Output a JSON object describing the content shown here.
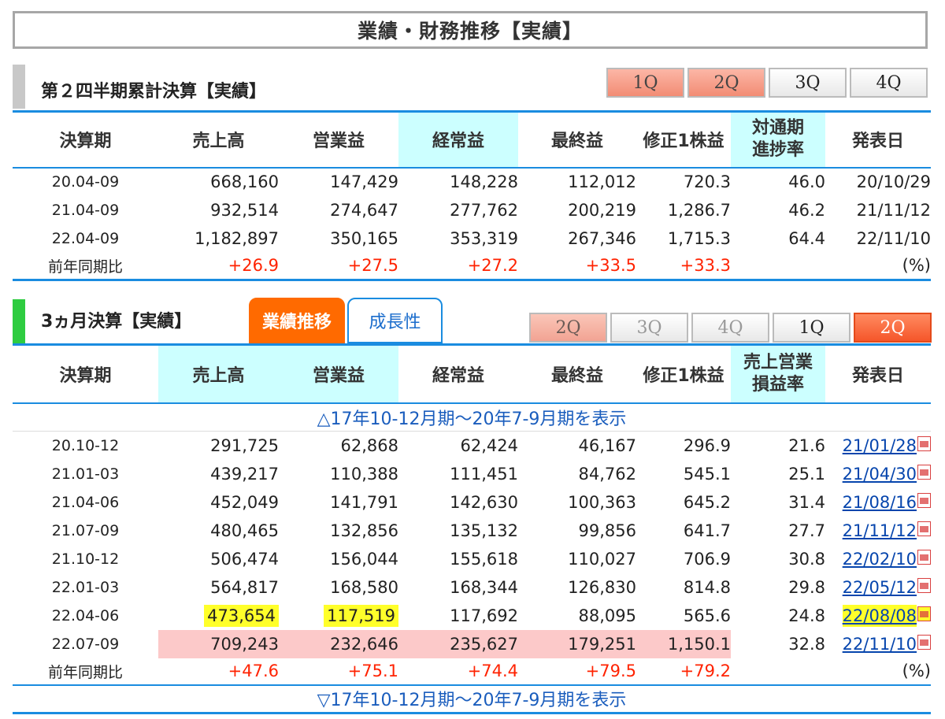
{
  "page_title": "業績・財務推移【実績】",
  "cumulative": {
    "title": "第２四半期累計決算【実績】",
    "qtabs": [
      "1Q",
      "2Q",
      "3Q",
      "4Q"
    ],
    "headers": [
      "決算期",
      "売上高",
      "営業益",
      "経常益",
      "最終益",
      "修正1株益",
      "対通期\n進捗率",
      "発表日"
    ],
    "rows": [
      {
        "period": "20.04-09",
        "sales": "668,160",
        "op": "147,429",
        "ord": "148,228",
        "net": "112,012",
        "eps": "720.3",
        "progress": "46.0",
        "date": "20/10/29"
      },
      {
        "period": "21.04-09",
        "sales": "932,514",
        "op": "274,647",
        "ord": "277,762",
        "net": "200,219",
        "eps": "1,286.7",
        "progress": "46.2",
        "date": "21/11/12"
      },
      {
        "period": "22.04-09",
        "sales": "1,182,897",
        "op": "350,165",
        "ord": "353,319",
        "net": "267,346",
        "eps": "1,715.3",
        "progress": "64.4",
        "date": "22/11/10"
      }
    ],
    "yoy": {
      "label": "前年同期比",
      "sales": "+26.9",
      "op": "+27.5",
      "ord": "+27.2",
      "net": "+33.5",
      "eps": "+33.3",
      "unit": "(%)"
    }
  },
  "quarterly": {
    "title": "3ヵ月決算【実績】",
    "tab_perf": "業績推移",
    "tab_growth": "成長性",
    "qtabs": [
      "2Q",
      "3Q",
      "4Q",
      "1Q",
      "2Q"
    ],
    "headers": [
      "決算期",
      "売上高",
      "営業益",
      "経常益",
      "最終益",
      "修正1株益",
      "売上営業\n損益率",
      "発表日"
    ],
    "toggle_top": "△17年10-12月期～20年7-9月期を表示",
    "toggle_bottom": "▽17年10-12月期～20年7-9月期を表示",
    "rows": [
      {
        "period": "20.10-12",
        "sales": "291,725",
        "op": "62,868",
        "ord": "62,424",
        "net": "46,167",
        "eps": "296.9",
        "margin": "21.6",
        "date": "21/01/28"
      },
      {
        "period": "21.01-03",
        "sales": "439,217",
        "op": "110,388",
        "ord": "111,451",
        "net": "84,762",
        "eps": "545.1",
        "margin": "25.1",
        "date": "21/04/30"
      },
      {
        "period": "21.04-06",
        "sales": "452,049",
        "op": "141,791",
        "ord": "142,630",
        "net": "100,363",
        "eps": "645.2",
        "margin": "31.4",
        "date": "21/08/16"
      },
      {
        "period": "21.07-09",
        "sales": "480,465",
        "op": "132,856",
        "ord": "135,132",
        "net": "99,856",
        "eps": "641.7",
        "margin": "27.7",
        "date": "21/11/12"
      },
      {
        "period": "21.10-12",
        "sales": "506,474",
        "op": "156,044",
        "ord": "155,618",
        "net": "110,027",
        "eps": "706.9",
        "margin": "30.8",
        "date": "22/02/10"
      },
      {
        "period": "22.01-03",
        "sales": "564,817",
        "op": "168,580",
        "ord": "168,344",
        "net": "126,830",
        "eps": "814.8",
        "margin": "29.8",
        "date": "22/05/12"
      },
      {
        "period": "22.04-06",
        "sales": "473,654",
        "op": "117,519",
        "ord": "117,692",
        "net": "88,095",
        "eps": "565.6",
        "margin": "24.8",
        "date": "22/08/08"
      },
      {
        "period": "22.07-09",
        "sales": "709,243",
        "op": "232,646",
        "ord": "235,627",
        "net": "179,251",
        "eps": "1,150.1",
        "margin": "32.8",
        "date": "22/11/10"
      }
    ],
    "yoy": {
      "label": "前年同期比",
      "sales": "+47.6",
      "op": "+75.1",
      "ord": "+74.4",
      "net": "+79.5",
      "eps": "+79.2",
      "unit": "(%)"
    }
  },
  "colors": {
    "accent_blue": "#1a8ce0",
    "highlight_cyan": "#ccffff",
    "pink_row": "#fcc9c9",
    "marker_yellow": "#ffff2a",
    "positive_red": "#ff2200",
    "orange_tab": "#ff6a00",
    "green_bar": "#2ecc40"
  }
}
